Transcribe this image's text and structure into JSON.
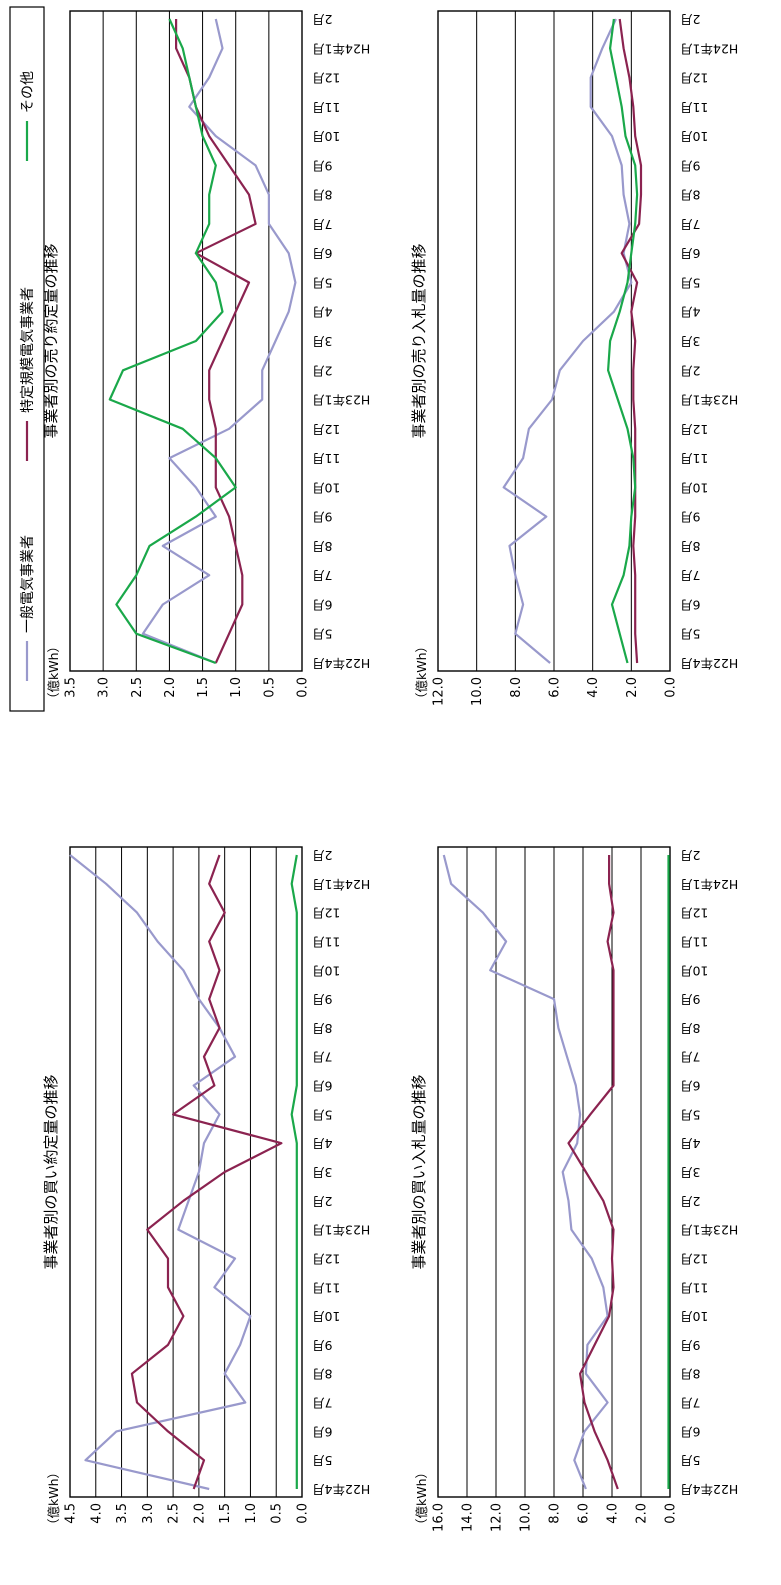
{
  "colors": {
    "general": "#9999cc",
    "specific": "#8b2350",
    "other": "#1aa84a"
  },
  "legend": {
    "items": [
      {
        "key": "general",
        "label": "一般電気事業者"
      },
      {
        "key": "specific",
        "label": "特定規模電気事業者"
      },
      {
        "key": "other",
        "label": "その他"
      }
    ]
  },
  "chart_data": [
    {
      "id": "buy_bid",
      "type": "line",
      "title": "事業者別の買い入札量の推移",
      "ylabel": "（億kWh）",
      "categories": [
        "H22年4月",
        "5月",
        "6月",
        "7月",
        "8月",
        "9月",
        "10月",
        "11月",
        "12月",
        "H23年1月",
        "2月",
        "3月",
        "4月",
        "5月",
        "6月",
        "7月",
        "8月",
        "9月",
        "10月",
        "11月",
        "12月",
        "H24年1月",
        "2月"
      ],
      "ylim": [
        0,
        16
      ],
      "yticks": [
        "0.0",
        "2.0",
        "4.0",
        "6.0",
        "8.0",
        "10.0",
        "12.0",
        "14.0",
        "16.0"
      ],
      "series": [
        {
          "name": "一般電気事業者",
          "key": "general",
          "values": [
            5.8,
            6.6,
            5.9,
            4.3,
            5.8,
            5.7,
            4.3,
            4.6,
            5.4,
            6.8,
            7.0,
            7.4,
            6.4,
            6.2,
            6.5,
            7.1,
            7.7,
            8.0,
            12.4,
            11.3,
            12.9,
            15.1,
            15.6
          ]
        },
        {
          "name": "特定規模電気事業者",
          "key": "specific",
          "values": [
            3.6,
            4.3,
            5.2,
            5.9,
            6.2,
            5.2,
            4.2,
            3.9,
            4.0,
            3.9,
            4.6,
            5.8,
            7.0,
            5.5,
            3.9,
            3.9,
            3.9,
            3.9,
            3.9,
            4.3,
            3.9,
            4.2,
            4.2
          ]
        },
        {
          "name": "その他",
          "key": "other",
          "values": [
            0.1,
            0.1,
            0.1,
            0.1,
            0.1,
            0.1,
            0.1,
            0.1,
            0.1,
            0.1,
            0.1,
            0.1,
            0.1,
            0.1,
            0.1,
            0.1,
            0.1,
            0.1,
            0.1,
            0.1,
            0.1,
            0.1,
            0.1
          ]
        }
      ]
    },
    {
      "id": "sell_bid",
      "type": "line",
      "title": "事業者別の売り入札量の推移",
      "ylabel": "（億kWh）",
      "categories": [
        "H22年4月",
        "5月",
        "6月",
        "7月",
        "8月",
        "9月",
        "10月",
        "11月",
        "12月",
        "H23年1月",
        "2月",
        "3月",
        "4月",
        "5月",
        "6月",
        "7月",
        "8月",
        "9月",
        "10月",
        "11月",
        "12月",
        "H24年1月",
        "2月"
      ],
      "ylim": [
        0,
        12
      ],
      "yticks": [
        "0.0",
        "2.0",
        "4.0",
        "6.0",
        "8.0",
        "10.0",
        "12.0"
      ],
      "series": [
        {
          "name": "一般電気事業者",
          "key": "general",
          "values": [
            6.2,
            8.0,
            7.6,
            8.0,
            8.3,
            6.4,
            8.6,
            7.6,
            7.3,
            6.1,
            5.7,
            4.5,
            2.9,
            2.0,
            2.4,
            2.1,
            2.4,
            2.5,
            3.0,
            4.1,
            4.1,
            3.5,
            2.8
          ]
        },
        {
          "name": "特定規模電気事業者",
          "key": "specific",
          "values": [
            1.7,
            1.8,
            1.8,
            1.8,
            1.9,
            1.8,
            1.8,
            1.8,
            1.8,
            1.9,
            1.9,
            1.8,
            2.0,
            1.7,
            2.5,
            1.6,
            1.5,
            1.5,
            1.8,
            1.9,
            2.1,
            2.4,
            2.6
          ]
        },
        {
          "name": "その他",
          "key": "other",
          "values": [
            2.2,
            2.6,
            3.0,
            2.4,
            2.1,
            2.0,
            1.8,
            1.9,
            2.2,
            2.7,
            3.2,
            3.1,
            2.6,
            2.2,
            2.0,
            1.8,
            1.7,
            1.8,
            2.3,
            2.5,
            2.8,
            3.1,
            2.9
          ]
        }
      ]
    },
    {
      "id": "buy_contract",
      "type": "line",
      "title": "事業者別の買い約定量の推移",
      "ylabel": "（億kWh）",
      "categories": [
        "H22年4月",
        "5月",
        "6月",
        "7月",
        "8月",
        "9月",
        "10月",
        "11月",
        "12月",
        "H23年1月",
        "2月",
        "3月",
        "4月",
        "5月",
        "6月",
        "7月",
        "8月",
        "9月",
        "10月",
        "11月",
        "12月",
        "H24年1月",
        "2月"
      ],
      "ylim": [
        0,
        4.5
      ],
      "yticks": [
        "0.0",
        "0.5",
        "1.0",
        "1.5",
        "2.0",
        "2.5",
        "3.0",
        "3.5",
        "4.0",
        "4.5"
      ],
      "series": [
        {
          "name": "一般電気事業者",
          "key": "general",
          "values": [
            1.8,
            4.2,
            3.6,
            1.1,
            1.5,
            1.2,
            1.0,
            1.7,
            1.3,
            2.4,
            2.2,
            2.0,
            1.9,
            1.6,
            2.1,
            1.3,
            1.6,
            2.0,
            2.3,
            2.8,
            3.2,
            3.8,
            4.5
          ]
        },
        {
          "name": "特定規模電気事業者",
          "key": "specific",
          "values": [
            2.1,
            1.9,
            2.6,
            3.2,
            3.3,
            2.6,
            2.3,
            2.6,
            2.6,
            3.0,
            2.3,
            1.5,
            0.4,
            2.5,
            1.7,
            1.9,
            1.6,
            1.8,
            1.6,
            1.8,
            1.5,
            1.8,
            1.6
          ]
        },
        {
          "name": "その他",
          "key": "other",
          "values": [
            0.1,
            0.1,
            0.1,
            0.1,
            0.1,
            0.1,
            0.1,
            0.1,
            0.1,
            0.1,
            0.1,
            0.1,
            0.1,
            0.2,
            0.1,
            0.1,
            0.1,
            0.1,
            0.1,
            0.1,
            0.1,
            0.2,
            0.1
          ]
        }
      ]
    },
    {
      "id": "sell_contract",
      "type": "line",
      "title": "事業者別の売り約定量の推移",
      "ylabel": "（億kWh）",
      "categories": [
        "H22年4月",
        "5月",
        "6月",
        "7月",
        "8月",
        "9月",
        "10月",
        "11月",
        "12月",
        "H23年1月",
        "2月",
        "3月",
        "4月",
        "5月",
        "6月",
        "7月",
        "8月",
        "9月",
        "10月",
        "11月",
        "12月",
        "H24年1月",
        "2月"
      ],
      "ylim": [
        0,
        3.5
      ],
      "yticks": [
        "0.0",
        "0.5",
        "1.0",
        "1.5",
        "2.0",
        "2.5",
        "3.0",
        "3.5"
      ],
      "series": [
        {
          "name": "一般電気事業者",
          "key": "general",
          "values": [
            1.3,
            2.4,
            2.1,
            1.4,
            2.1,
            1.3,
            1.6,
            2.0,
            1.1,
            0.6,
            0.6,
            0.4,
            0.2,
            0.1,
            0.2,
            0.5,
            0.5,
            0.7,
            1.3,
            1.7,
            1.4,
            1.2,
            1.3
          ]
        },
        {
          "name": "特定規模電気事業者",
          "key": "specific",
          "values": [
            1.3,
            1.1,
            0.9,
            0.9,
            1.0,
            1.1,
            1.3,
            1.3,
            1.3,
            1.4,
            1.4,
            1.2,
            1.0,
            0.8,
            1.6,
            0.7,
            0.8,
            1.1,
            1.4,
            1.6,
            1.7,
            1.9,
            1.9
          ]
        },
        {
          "name": "その他",
          "key": "other",
          "values": [
            1.3,
            2.5,
            2.8,
            2.5,
            2.3,
            1.6,
            1.0,
            1.3,
            1.8,
            2.9,
            2.7,
            1.6,
            1.2,
            1.3,
            1.6,
            1.4,
            1.4,
            1.3,
            1.5,
            1.6,
            1.7,
            1.8,
            2.0
          ]
        }
      ]
    }
  ]
}
